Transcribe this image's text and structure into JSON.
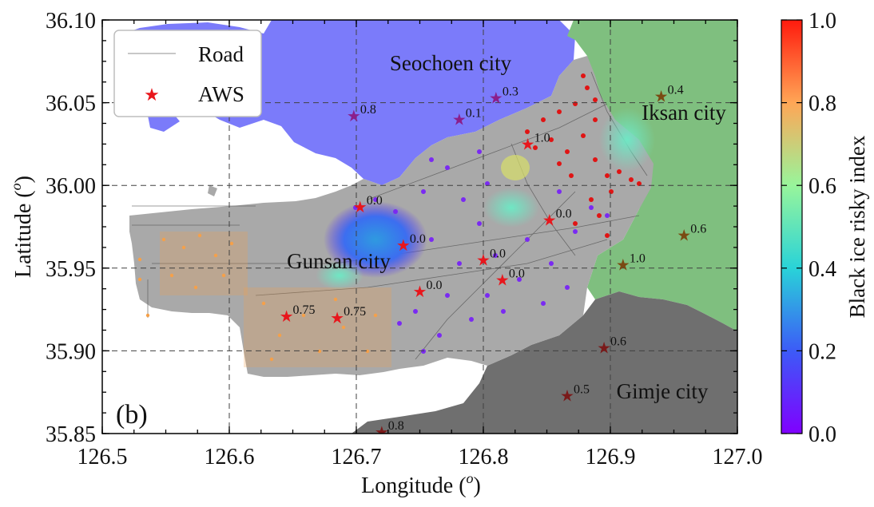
{
  "panel_label": "(b)",
  "axes": {
    "xlabel": "Longitude",
    "xlabel_unit": "o",
    "ylabel": "Latitude",
    "ylabel_unit": "o",
    "xlim": [
      126.5,
      127.0
    ],
    "ylim": [
      35.85,
      36.1
    ],
    "xticks": [
      "126.5",
      "126.6",
      "126.7",
      "126.8",
      "126.9",
      "127.0"
    ],
    "yticks": [
      "35.85",
      "35.90",
      "35.95",
      "36.00",
      "36.05",
      "36.10"
    ],
    "grid": "dashed"
  },
  "legend": {
    "placement": "top-left",
    "items": [
      {
        "label": "Road",
        "symbol": "line",
        "color": "#c8c8c8"
      },
      {
        "label": "AWS",
        "symbol": "star",
        "color": "#e8161c"
      }
    ]
  },
  "regions": [
    {
      "name": "Seochoen city",
      "color": "#7b7bfa"
    },
    {
      "name": "Iksan city",
      "color": "#7fbf7f"
    },
    {
      "name": "Gimje city",
      "color": "#6f6f6f"
    },
    {
      "name": "Gunsan city",
      "color": "#a9a9a9"
    }
  ],
  "colorbar": {
    "label": "Black ice risky index",
    "ticks": [
      "0.0",
      "0.2",
      "0.4",
      "0.6",
      "0.8",
      "1.0"
    ],
    "colormap": "rainbow"
  },
  "chart_data": {
    "type": "scatter",
    "stations": [
      {
        "lon": 126.645,
        "lat": 35.921,
        "value": "0.75"
      },
      {
        "lon": 126.685,
        "lat": 35.92,
        "value": "0.75"
      },
      {
        "lon": 126.703,
        "lat": 35.987,
        "value": "0.0"
      },
      {
        "lon": 126.737,
        "lat": 35.964,
        "value": "0.0"
      },
      {
        "lon": 126.75,
        "lat": 35.936,
        "value": "0.0"
      },
      {
        "lon": 126.8,
        "lat": 35.955,
        "value": "0.0"
      },
      {
        "lon": 126.815,
        "lat": 35.943,
        "value": "0.0"
      },
      {
        "lon": 126.852,
        "lat": 35.979,
        "value": "0.0"
      },
      {
        "lon": 126.835,
        "lat": 36.025,
        "value": "1.0"
      },
      {
        "lon": 126.91,
        "lat": 35.952,
        "value": "1.0"
      },
      {
        "lon": 126.698,
        "lat": 36.042,
        "value": "0.8"
      },
      {
        "lon": 126.781,
        "lat": 36.04,
        "value": "0.1"
      },
      {
        "lon": 126.81,
        "lat": 36.053,
        "value": "0.3"
      },
      {
        "lon": 126.94,
        "lat": 36.054,
        "value": "0.4"
      },
      {
        "lon": 126.958,
        "lat": 35.97,
        "value": "0.6"
      },
      {
        "lon": 126.895,
        "lat": 35.902,
        "value": "0.6"
      },
      {
        "lon": 126.866,
        "lat": 35.873,
        "value": "0.5"
      },
      {
        "lon": 126.72,
        "lat": 35.851,
        "value": "0.8"
      }
    ]
  }
}
